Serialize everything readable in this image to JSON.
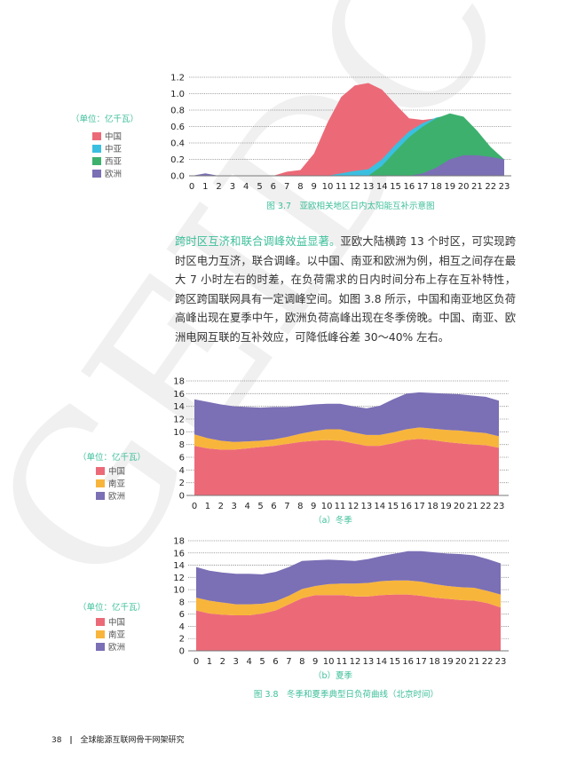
{
  "watermark": "GEIDCO",
  "colors": {
    "china": "#ec6a78",
    "central_asia": "#3bbfe0",
    "west_asia": "#3db06e",
    "europe": "#7b6fb5",
    "south_asia": "#f8b53c",
    "accent": "#3dbf9a"
  },
  "chart_data": [
    {
      "type": "area",
      "title": "图 3.7　亚欧相关地区日内太阳能互补示意图",
      "unit_label": "（单位：亿千瓦）",
      "stacked": false,
      "x": [
        0,
        1,
        2,
        3,
        4,
        5,
        6,
        7,
        8,
        9,
        10,
        11,
        12,
        13,
        14,
        15,
        16,
        17,
        18,
        19,
        20,
        21,
        22,
        23
      ],
      "yticks": [
        "0.0",
        "0.2",
        "0.4",
        "0.6",
        "0.8",
        "1.0",
        "1.2"
      ],
      "ylim": [
        0,
        1.2
      ],
      "grid": true,
      "legend_placement": "left",
      "series": [
        {
          "name": "中国",
          "color_key": "china",
          "values": [
            0,
            0,
            0,
            0,
            0,
            0,
            0,
            0.05,
            0.07,
            0.27,
            0.65,
            0.96,
            1.1,
            1.13,
            1.05,
            0.87,
            0.7,
            0.68,
            0.7,
            0.6,
            0.4,
            0.2,
            0.05,
            0
          ]
        },
        {
          "name": "中亚",
          "color_key": "central_asia",
          "values": [
            0,
            0,
            0,
            0,
            0,
            0,
            0,
            0,
            0,
            0,
            0,
            0.03,
            0.06,
            0.08,
            0.2,
            0.38,
            0.54,
            0.64,
            0.71,
            0.74,
            0.6,
            0.4,
            0.2,
            0.1
          ]
        },
        {
          "name": "西亚",
          "color_key": "west_asia",
          "values": [
            0,
            0,
            0,
            0,
            0,
            0,
            0,
            0,
            0,
            0,
            0,
            0,
            0,
            0,
            0.12,
            0.3,
            0.47,
            0.6,
            0.7,
            0.76,
            0.72,
            0.55,
            0.35,
            0.2
          ]
        },
        {
          "name": "欧洲",
          "color_key": "europe",
          "values": [
            0,
            0.03,
            0,
            0,
            0,
            0,
            0,
            0,
            0,
            0,
            0,
            0,
            0,
            0,
            0,
            0,
            0,
            0.03,
            0.1,
            0.2,
            0.25,
            0.25,
            0.23,
            0.2
          ]
        }
      ]
    },
    {
      "type": "area",
      "title": "（a）冬季",
      "unit_label": "（单位：亿千瓦）",
      "stacked": true,
      "x": [
        0,
        1,
        2,
        3,
        4,
        5,
        6,
        7,
        8,
        9,
        10,
        11,
        12,
        13,
        14,
        15,
        16,
        17,
        18,
        19,
        20,
        21,
        22,
        23
      ],
      "yticks": [
        "0",
        "2",
        "4",
        "6",
        "8",
        "10",
        "12",
        "14",
        "16",
        "18"
      ],
      "ylim": [
        0,
        18
      ],
      "grid": true,
      "legend_placement": "left",
      "series": [
        {
          "name": "中国",
          "color_key": "china",
          "values": [
            7.8,
            7.4,
            7.2,
            7.2,
            7.4,
            7.6,
            7.8,
            8.1,
            8.4,
            8.6,
            8.7,
            8.6,
            8.2,
            7.8,
            7.8,
            8.2,
            8.7,
            8.9,
            8.7,
            8.4,
            8.2,
            8.0,
            7.9,
            7.5
          ]
        },
        {
          "name": "南亚",
          "color_key": "south_asia",
          "values": [
            1.8,
            1.6,
            1.4,
            1.2,
            1.1,
            1.0,
            1.0,
            1.1,
            1.3,
            1.5,
            1.7,
            1.8,
            1.7,
            1.7,
            1.7,
            1.7,
            1.7,
            1.8,
            1.8,
            1.9,
            2.0,
            2.0,
            1.9,
            1.8
          ]
        },
        {
          "name": "欧洲",
          "color_key": "europe",
          "values": [
            5.5,
            5.7,
            5.7,
            5.6,
            5.4,
            5.2,
            5.1,
            4.7,
            4.4,
            4.2,
            4.0,
            4.0,
            4.1,
            4.2,
            4.6,
            5.2,
            5.6,
            5.5,
            5.6,
            5.7,
            5.7,
            5.7,
            5.7,
            5.6
          ]
        }
      ]
    },
    {
      "type": "area",
      "title": "（b）夏季",
      "unit_label": "（单位：亿千瓦）",
      "stacked": true,
      "x": [
        0,
        1,
        2,
        3,
        4,
        5,
        6,
        7,
        8,
        9,
        10,
        11,
        12,
        13,
        14,
        15,
        16,
        17,
        18,
        19,
        20,
        21,
        22,
        23
      ],
      "yticks": [
        "0",
        "2",
        "4",
        "6",
        "8",
        "10",
        "12",
        "14",
        "16",
        "18"
      ],
      "ylim": [
        0,
        18
      ],
      "grid": true,
      "legend_placement": "left",
      "series": [
        {
          "name": "中国",
          "color_key": "china",
          "values": [
            6.6,
            6.1,
            5.9,
            5.8,
            5.8,
            6.1,
            6.6,
            7.6,
            8.6,
            9.1,
            9.1,
            9.1,
            8.9,
            8.9,
            9.1,
            9.2,
            9.2,
            9.0,
            8.7,
            8.5,
            8.3,
            8.2,
            7.8,
            7.1
          ]
        },
        {
          "name": "南亚",
          "color_key": "south_asia",
          "values": [
            2.1,
            2.1,
            2.0,
            1.8,
            1.8,
            1.6,
            1.5,
            1.4,
            1.5,
            1.5,
            1.8,
            1.9,
            2.1,
            2.2,
            2.3,
            2.3,
            2.3,
            2.3,
            2.2,
            2.1,
            2.1,
            2.1,
            2.0,
            2.1
          ]
        },
        {
          "name": "欧洲",
          "color_key": "europe",
          "values": [
            5.0,
            4.9,
            4.9,
            5.0,
            5.0,
            4.8,
            4.8,
            4.7,
            4.6,
            4.2,
            4.0,
            3.8,
            3.7,
            3.9,
            4.1,
            4.4,
            4.8,
            5.0,
            5.2,
            5.3,
            5.4,
            5.3,
            5.2,
            5.1
          ]
        }
      ]
    }
  ],
  "figure_3_8_caption": "图 3.8　冬季和夏季典型日负荷曲线（北京时间）",
  "paragraph": {
    "highlight": "跨时区互济和联合调峰效益显著。",
    "body": "亚欧大陆横跨 13 个时区，可实现跨时区电力互济，联合调峰。以中国、南亚和欧洲为例，相互之间存在最大 7 小时左右的时差，在负荷需求的日内时间分布上存在互补特性，跨区跨国联网具有一定调峰空间。如图 3.8 所示，中国和南亚地区负荷高峰出现在夏季中午，欧洲负荷高峰出现在冬季傍晚。中国、南亚、欧洲电网互联的互补效应，可降低峰谷差 30～40% 左右。"
  },
  "footer": {
    "page_number": "38",
    "separator": "|",
    "book_title": "全球能源互联网骨干网架研究"
  }
}
